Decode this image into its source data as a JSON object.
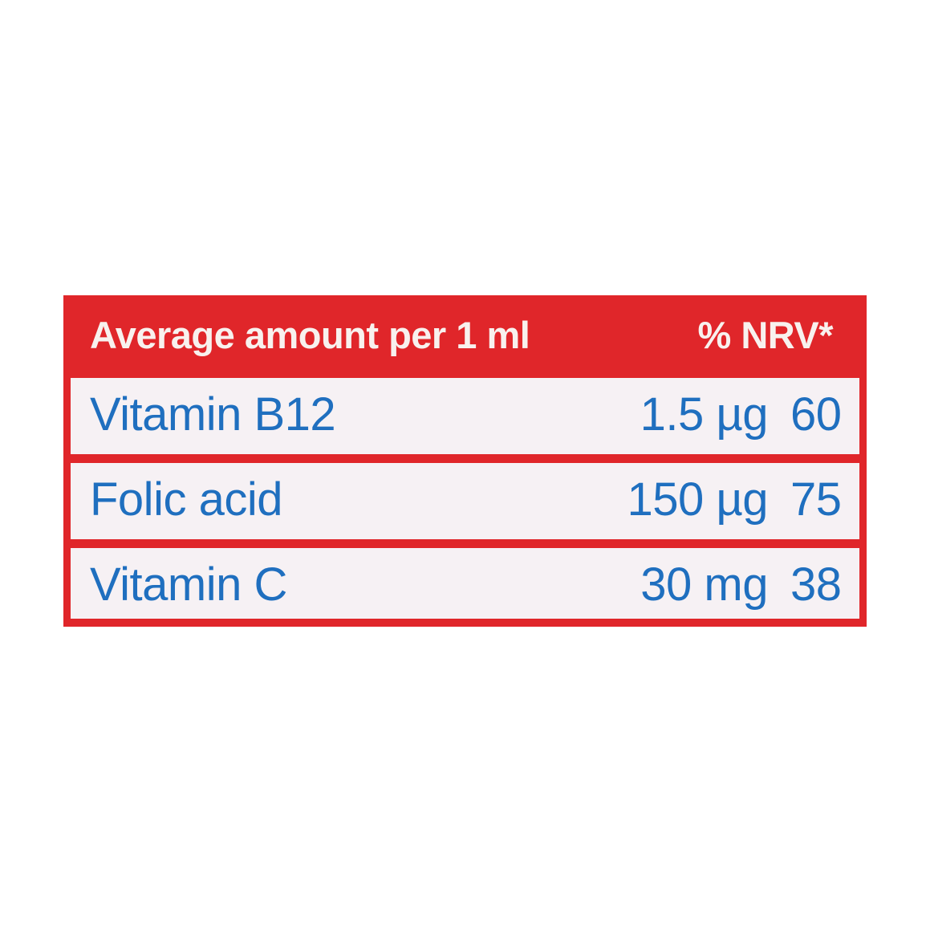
{
  "header": {
    "title": "Average amount per 1 ml",
    "nrv": "% NRV*"
  },
  "rows": [
    {
      "name": "Vitamin B12",
      "amount": "1.5 µg",
      "nrv": "60"
    },
    {
      "name": "Folic acid",
      "amount": "150 µg",
      "nrv": "75"
    },
    {
      "name": "Vitamin C",
      "amount": "30 mg",
      "nrv": "38"
    }
  ],
  "colors": {
    "panel_red": "#e0262a",
    "row_background": "#f6f1f4",
    "text_blue": "#1f6fbf",
    "header_text": "#f8f1ee"
  }
}
